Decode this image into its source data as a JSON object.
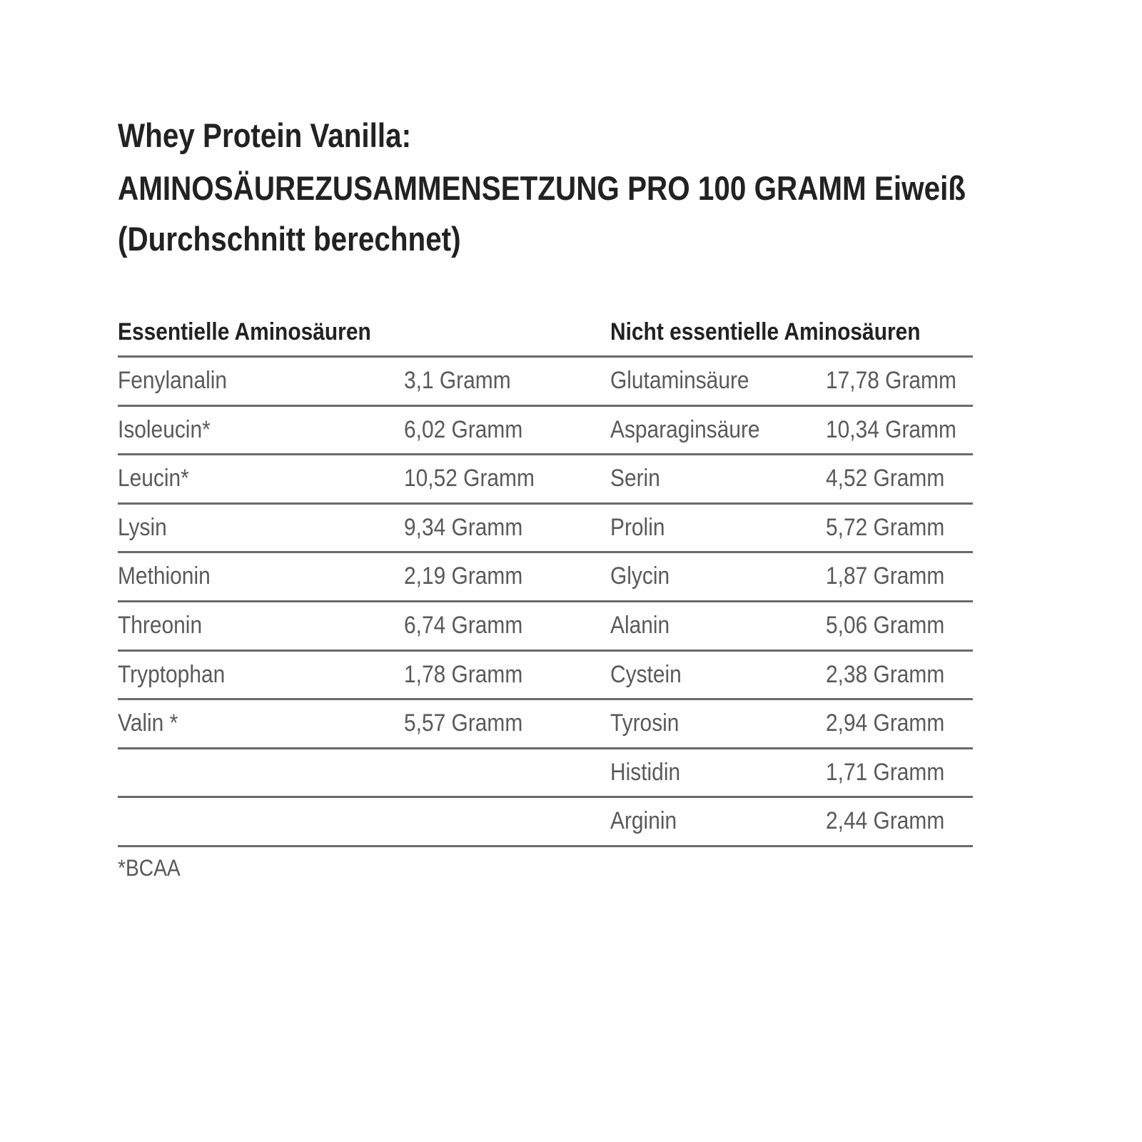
{
  "title": {
    "line1": "Whey Protein Vanilla:",
    "line2": "AMINOSÄUREZUSAMMENSETZUNG PRO 100 GRAMM Eiweiß",
    "line3": "(Durchschnitt berechnet)"
  },
  "table": {
    "headers": [
      "Essentielle Aminosäuren",
      "Nicht essentielle Aminosäuren"
    ],
    "essential": [
      {
        "name": "Fenylanalin",
        "value": "3,1 Gramm"
      },
      {
        "name": "Isoleucin*",
        "value": "6,02 Gramm"
      },
      {
        "name": "Leucin*",
        "value": "10,52 Gramm"
      },
      {
        "name": "Lysin",
        "value": "9,34 Gramm"
      },
      {
        "name": "Methionin",
        "value": "2,19 Gramm"
      },
      {
        "name": "Threonin",
        "value": "6,74 Gramm"
      },
      {
        "name": "Tryptophan",
        "value": "1,78 Gramm"
      },
      {
        "name": "Valin *",
        "value": "5,57 Gramm"
      }
    ],
    "nonessential": [
      {
        "name": "Glutaminsäure",
        "value": "17,78 Gramm"
      },
      {
        "name": "Asparaginsäure",
        "value": "10,34 Gramm"
      },
      {
        "name": "Serin",
        "value": "4,52 Gramm"
      },
      {
        "name": "Prolin",
        "value": "5,72 Gramm"
      },
      {
        "name": "Glycin",
        "value": "1,87 Gramm"
      },
      {
        "name": "Alanin",
        "value": "5,06 Gramm"
      },
      {
        "name": "Cystein",
        "value": "2,38 Gramm"
      },
      {
        "name": "Tyrosin",
        "value": "2,94 Gramm"
      },
      {
        "name": "Histidin",
        "value": "1,71 Gramm"
      },
      {
        "name": "Arginin",
        "value": "2,44 Gramm"
      }
    ]
  },
  "footnote": "*BCAA"
}
